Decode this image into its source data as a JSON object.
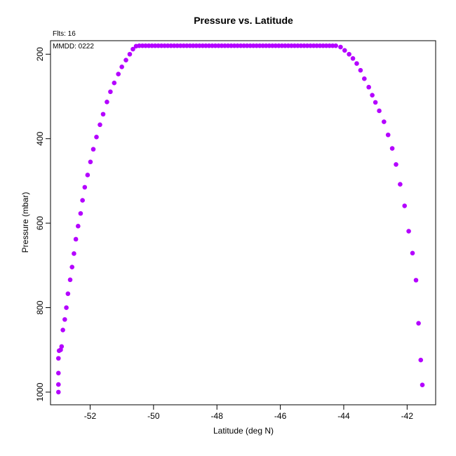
{
  "chart_data": {
    "type": "scatter",
    "title": "Pressure vs. Latitude",
    "xlabel": "Latitude (deg N)",
    "ylabel": "Pressure (mbar)",
    "xlim": [
      -53.25,
      -41.1
    ],
    "ylim": [
      1030,
      168
    ],
    "y_axis_inverted": true,
    "grid": false,
    "x_ticks": [
      -52,
      -50,
      -48,
      -46,
      -44,
      -42
    ],
    "y_ticks": [
      200,
      400,
      600,
      800,
      1000
    ],
    "point_color": "#b400ff",
    "annotations": {
      "fits": "Flts: 16",
      "mmdd": "MMDD: 0222"
    },
    "points": [
      [
        -53.0,
        1000
      ],
      [
        -53.0,
        982
      ],
      [
        -53.0,
        955
      ],
      [
        -53.0,
        920
      ],
      [
        -52.98,
        902
      ],
      [
        -52.93,
        900
      ],
      [
        -52.9,
        892
      ],
      [
        -52.86,
        853
      ],
      [
        -52.8,
        828
      ],
      [
        -52.75,
        800
      ],
      [
        -52.7,
        767
      ],
      [
        -52.63,
        734
      ],
      [
        -52.57,
        704
      ],
      [
        -52.51,
        672
      ],
      [
        -52.45,
        638
      ],
      [
        -52.38,
        607
      ],
      [
        -52.3,
        577
      ],
      [
        -52.24,
        546
      ],
      [
        -52.17,
        515
      ],
      [
        -52.08,
        486
      ],
      [
        -51.99,
        455
      ],
      [
        -51.9,
        425
      ],
      [
        -51.8,
        396
      ],
      [
        -51.69,
        367
      ],
      [
        -51.59,
        342
      ],
      [
        -51.47,
        313
      ],
      [
        -51.36,
        289
      ],
      [
        -51.24,
        268
      ],
      [
        -51.11,
        247
      ],
      [
        -51.0,
        230
      ],
      [
        -50.87,
        214
      ],
      [
        -50.75,
        200
      ],
      [
        -50.65,
        188
      ],
      [
        -50.55,
        181
      ],
      [
        -50.45,
        180
      ],
      [
        -50.35,
        180
      ],
      [
        -50.25,
        180
      ],
      [
        -50.15,
        180
      ],
      [
        -50.05,
        180
      ],
      [
        -49.95,
        180
      ],
      [
        -49.85,
        180
      ],
      [
        -49.75,
        180
      ],
      [
        -49.65,
        180
      ],
      [
        -49.55,
        180
      ],
      [
        -49.45,
        180
      ],
      [
        -49.35,
        180
      ],
      [
        -49.25,
        180
      ],
      [
        -49.15,
        180
      ],
      [
        -49.05,
        180
      ],
      [
        -48.95,
        180
      ],
      [
        -48.85,
        180
      ],
      [
        -48.75,
        180
      ],
      [
        -48.65,
        180
      ],
      [
        -48.55,
        180
      ],
      [
        -48.45,
        180
      ],
      [
        -48.35,
        180
      ],
      [
        -48.25,
        180
      ],
      [
        -48.15,
        180
      ],
      [
        -48.05,
        180
      ],
      [
        -47.95,
        180
      ],
      [
        -47.85,
        180
      ],
      [
        -47.75,
        180
      ],
      [
        -47.65,
        180
      ],
      [
        -47.55,
        180
      ],
      [
        -47.45,
        180
      ],
      [
        -47.35,
        180
      ],
      [
        -47.25,
        180
      ],
      [
        -47.15,
        180
      ],
      [
        -47.05,
        180
      ],
      [
        -46.95,
        180
      ],
      [
        -46.85,
        180
      ],
      [
        -46.75,
        180
      ],
      [
        -46.65,
        180
      ],
      [
        -46.55,
        180
      ],
      [
        -46.45,
        180
      ],
      [
        -46.35,
        180
      ],
      [
        -46.25,
        180
      ],
      [
        -46.15,
        180
      ],
      [
        -46.05,
        180
      ],
      [
        -45.95,
        180
      ],
      [
        -45.85,
        180
      ],
      [
        -45.75,
        180
      ],
      [
        -45.65,
        180
      ],
      [
        -45.55,
        180
      ],
      [
        -45.45,
        180
      ],
      [
        -45.35,
        180
      ],
      [
        -45.25,
        180
      ],
      [
        -45.15,
        180
      ],
      [
        -45.05,
        180
      ],
      [
        -44.95,
        180
      ],
      [
        -44.85,
        180
      ],
      [
        -44.75,
        180
      ],
      [
        -44.65,
        180
      ],
      [
        -44.55,
        180
      ],
      [
        -44.45,
        180
      ],
      [
        -44.35,
        180
      ],
      [
        -44.25,
        180
      ],
      [
        -44.1,
        183
      ],
      [
        -43.97,
        191
      ],
      [
        -43.83,
        200
      ],
      [
        -43.71,
        210
      ],
      [
        -43.59,
        222
      ],
      [
        -43.47,
        238
      ],
      [
        -43.35,
        258
      ],
      [
        -43.21,
        278
      ],
      [
        -43.1,
        297
      ],
      [
        -43.0,
        314
      ],
      [
        -42.88,
        334
      ],
      [
        -42.73,
        360
      ],
      [
        -42.6,
        391
      ],
      [
        -42.47,
        423
      ],
      [
        -42.35,
        461
      ],
      [
        -42.22,
        508
      ],
      [
        -42.08,
        559
      ],
      [
        -41.95,
        619
      ],
      [
        -41.83,
        671
      ],
      [
        -41.72,
        735
      ],
      [
        -41.64,
        837
      ],
      [
        -41.57,
        924
      ],
      [
        -41.52,
        983
      ]
    ]
  }
}
